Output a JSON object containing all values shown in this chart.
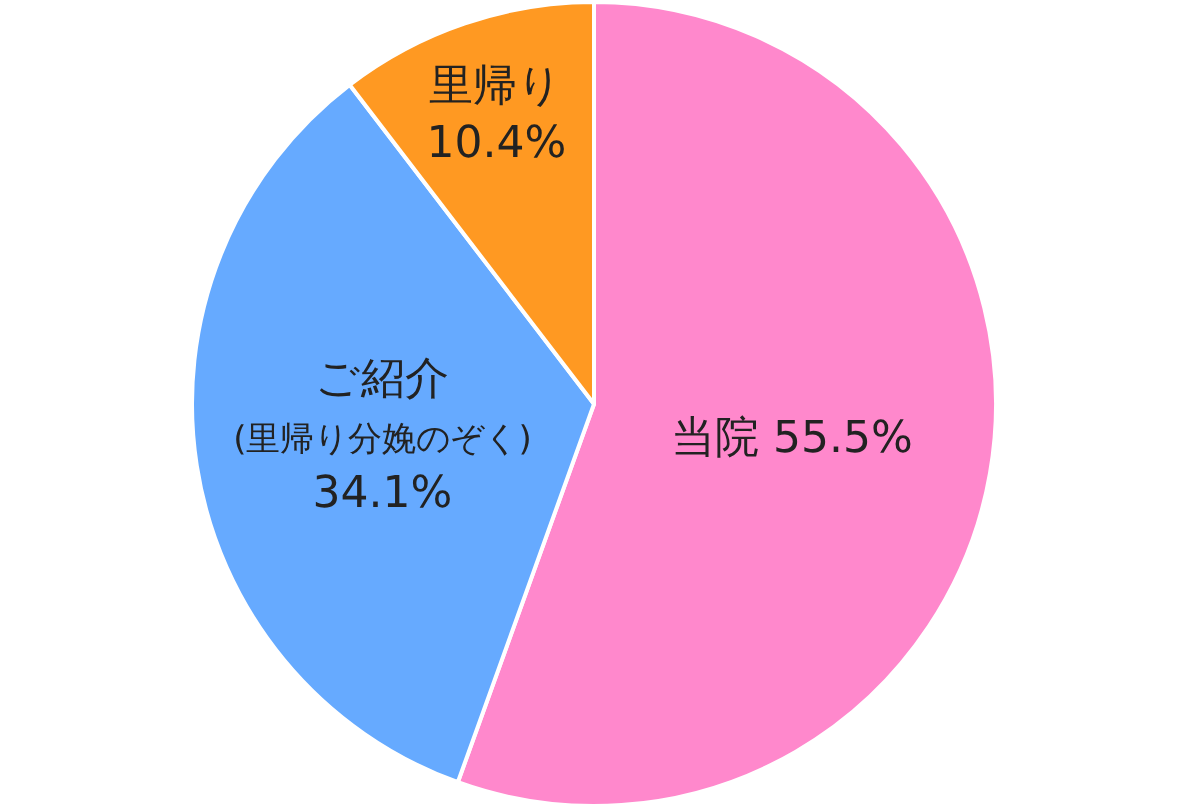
{
  "chart_data": {
    "type": "pie",
    "categories": [
      "当院",
      "ご紹介\n(里帰り分娩のぞく)",
      "里帰り"
    ],
    "values": [
      55.5,
      34.1,
      10.4
    ],
    "value_labels": [
      "55.5%",
      "34.1%",
      "10.4%"
    ],
    "colors": [
      "#ff88cc",
      "#66aaff",
      "#ff9922"
    ],
    "legend": false
  }
}
